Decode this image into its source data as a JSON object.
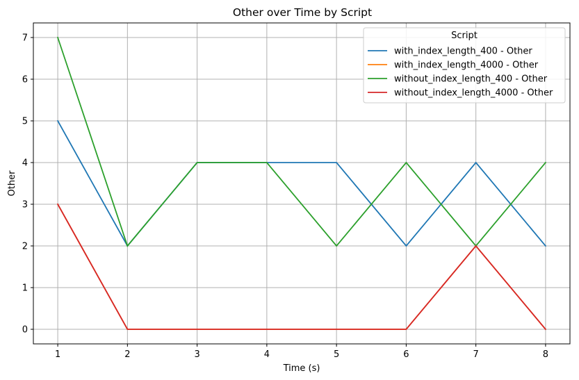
{
  "chart_data": {
    "type": "line",
    "title": "Other over Time by Script",
    "xlabel": "Time (s)",
    "ylabel": "Other",
    "x": [
      1,
      2,
      3,
      4,
      5,
      6,
      7,
      8
    ],
    "xlim": [
      0.65,
      8.35
    ],
    "ylim": [
      -0.35,
      7.35
    ],
    "xticks": [
      1,
      2,
      3,
      4,
      5,
      6,
      7,
      8
    ],
    "yticks": [
      0,
      1,
      2,
      3,
      4,
      5,
      6,
      7
    ],
    "grid": true,
    "legend": {
      "title": "Script",
      "placement": "top-right"
    },
    "series": [
      {
        "name": "with_index_length_400 - Other",
        "color": "#1f77b4",
        "values": [
          5,
          2,
          4,
          4,
          4,
          2,
          4,
          2
        ]
      },
      {
        "name": "with_index_length_4000 - Other",
        "color": "#ff7f0e",
        "values": [
          3,
          0,
          0,
          0,
          0,
          0,
          2,
          0
        ]
      },
      {
        "name": "without_index_length_400 - Other",
        "color": "#2ca02c",
        "values": [
          7,
          2,
          4,
          4,
          2,
          4,
          2,
          4
        ]
      },
      {
        "name": "without_index_length_4000 - Other",
        "color": "#d62728",
        "values": [
          3,
          0,
          0,
          0,
          0,
          0,
          2,
          0
        ]
      }
    ]
  }
}
